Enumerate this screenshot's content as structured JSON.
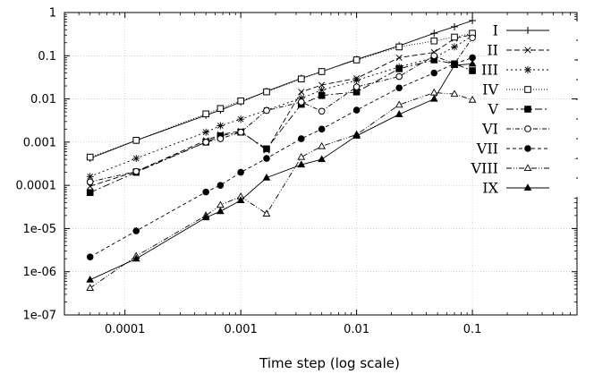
{
  "chart_data": {
    "type": "line",
    "title": "",
    "xlabel": "Time step (log scale)",
    "ylabel": "",
    "xscale": "log",
    "yscale": "log",
    "xlim": [
      3e-05,
      0.8
    ],
    "ylim": [
      1e-07,
      1
    ],
    "grid": true,
    "legend_position": "right",
    "x_ticks": [
      {
        "value": 0.0001,
        "label": "0.0001"
      },
      {
        "value": 0.001,
        "label": "0.001"
      },
      {
        "value": 0.01,
        "label": "0.01"
      },
      {
        "value": 0.1,
        "label": "0.1"
      }
    ],
    "y_ticks": [
      {
        "value": 1,
        "label": "1"
      },
      {
        "value": 0.1,
        "label": "0.1"
      },
      {
        "value": 0.01,
        "label": "0.01"
      },
      {
        "value": 0.001,
        "label": "0.001"
      },
      {
        "value": 0.0001,
        "label": "0.0001"
      },
      {
        "value": 1e-05,
        "label": "1e-05"
      },
      {
        "value": 1e-06,
        "label": "1e-06"
      },
      {
        "value": 1e-07,
        "label": "1e-07"
      }
    ],
    "series": [
      {
        "name": "I",
        "marker": "plus",
        "dash": "",
        "x": [
          5e-05,
          0.000125,
          0.0005,
          0.000667,
          0.001,
          0.00167,
          0.00333,
          0.005,
          0.01,
          0.0233,
          0.0467,
          0.07,
          0.1
        ],
        "y": [
          0.00042,
          0.0011,
          0.0042,
          0.0055,
          0.0085,
          0.015,
          0.03,
          0.043,
          0.082,
          0.17,
          0.33,
          0.47,
          0.65
        ]
      },
      {
        "name": "II",
        "marker": "x",
        "dash": "6,3",
        "x": [
          5e-05,
          0.000125,
          0.0005,
          0.000667,
          0.001,
          0.00167,
          0.00333,
          0.005,
          0.01,
          0.0233,
          0.0467,
          0.07,
          0.1
        ],
        "y": [
          9.5e-05,
          0.00021,
          0.0011,
          0.0015,
          0.0018,
          0.00065,
          0.0145,
          0.021,
          0.03,
          0.09,
          0.12,
          0.25,
          0.31
        ]
      },
      {
        "name": "III",
        "marker": "star",
        "dash": "2,3",
        "x": [
          5e-05,
          0.000125,
          0.0005,
          0.000667,
          0.001,
          0.00167,
          0.00333,
          0.005,
          0.01,
          0.0233,
          0.0467,
          0.07,
          0.1
        ],
        "y": [
          0.00016,
          0.00042,
          0.0017,
          0.0024,
          0.0034,
          0.0055,
          0.0104,
          0.016,
          0.027,
          0.055,
          0.09,
          0.16,
          0.29
        ]
      },
      {
        "name": "IV",
        "marker": "square-open",
        "dash": "1,2",
        "x": [
          5e-05,
          0.000125,
          0.0005,
          0.000667,
          0.001,
          0.00167,
          0.00333,
          0.005,
          0.01,
          0.0233,
          0.0467,
          0.07,
          0.1
        ],
        "y": [
          0.00045,
          0.0011,
          0.0045,
          0.006,
          0.009,
          0.0146,
          0.029,
          0.043,
          0.08,
          0.16,
          0.22,
          0.27,
          0.33
        ]
      },
      {
        "name": "V",
        "marker": "square-filled",
        "dash": "8,3,2,3",
        "x": [
          5e-05,
          0.000125,
          0.0005,
          0.000667,
          0.001,
          0.00167,
          0.00333,
          0.005,
          0.01,
          0.0233,
          0.0467,
          0.07,
          0.1
        ],
        "y": [
          6.8e-05,
          0.0002,
          0.001,
          0.0014,
          0.0017,
          0.0007,
          0.0075,
          0.012,
          0.0145,
          0.05,
          0.08,
          0.065,
          0.045
        ]
      },
      {
        "name": "VI",
        "marker": "circle-open",
        "dash": "5,2,1,2",
        "x": [
          5e-05,
          0.000125,
          0.0005,
          0.000667,
          0.001,
          0.00167,
          0.00333,
          0.005,
          0.01,
          0.0233,
          0.0467,
          0.07,
          0.1
        ],
        "y": [
          0.00012,
          0.00021,
          0.001,
          0.0012,
          0.0017,
          0.0054,
          0.0085,
          0.0052,
          0.019,
          0.033,
          0.1,
          0.065,
          0.26
        ]
      },
      {
        "name": "VII",
        "marker": "circle-filled",
        "dash": "4,3",
        "x": [
          5e-05,
          0.000125,
          0.0005,
          0.000667,
          0.001,
          0.00167,
          0.00333,
          0.005,
          0.01,
          0.0233,
          0.0467,
          0.07,
          0.1
        ],
        "y": [
          2.2e-06,
          8.8e-06,
          7e-05,
          0.0001,
          0.0002,
          0.00042,
          0.0012,
          0.002,
          0.0055,
          0.018,
          0.04,
          0.065,
          0.09
        ]
      },
      {
        "name": "VIII",
        "marker": "triangle-open",
        "dash": "6,2,1,2,1,2",
        "x": [
          5e-05,
          0.000125,
          0.0005,
          0.000667,
          0.001,
          0.00167,
          0.00333,
          0.005,
          0.01,
          0.0233,
          0.0467,
          0.07,
          0.1
        ],
        "y": [
          4.2e-07,
          2.3e-06,
          2e-05,
          3.5e-05,
          5.5e-05,
          2.2e-05,
          0.00045,
          0.0008,
          0.0015,
          0.0073,
          0.014,
          0.013,
          0.0095
        ]
      },
      {
        "name": "IX",
        "marker": "triangle-filled",
        "dash": "",
        "x": [
          5e-05,
          0.000125,
          0.0005,
          0.000667,
          0.001,
          0.00167,
          0.00333,
          0.005,
          0.01,
          0.0233,
          0.0467,
          0.07,
          0.1
        ],
        "y": [
          6.5e-07,
          2e-06,
          1.8e-05,
          2.5e-05,
          4.5e-05,
          0.00015,
          0.0003,
          0.0004,
          0.0014,
          0.0044,
          0.01,
          0.06,
          0.065
        ]
      }
    ]
  }
}
